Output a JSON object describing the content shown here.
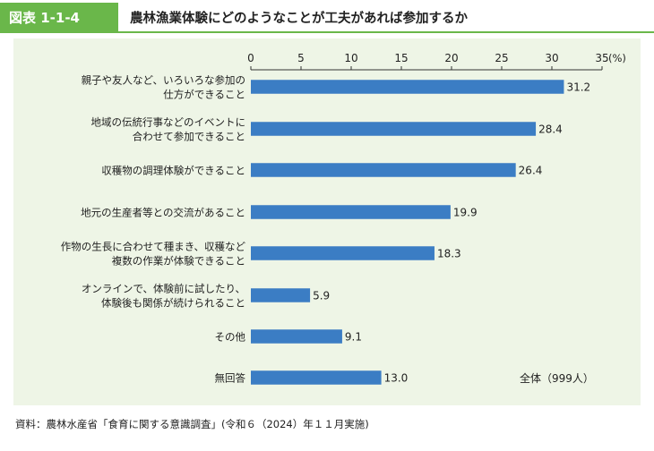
{
  "header": {
    "figure_label": "図表 1-1-4",
    "title": "農林漁業体験にどのようなことが工夫があれば参加するか"
  },
  "source": "資料：農林水産省「食育に関する意識調査」(令和６（2024）年１１月実施)",
  "colors": {
    "bar": "#3b7dc4",
    "accent": "#6ab74a",
    "panel": "#eef5e6"
  },
  "chart_data": {
    "type": "bar",
    "orientation": "horizontal",
    "categories": [
      [
        "親子や友人など、いろいろな参加の",
        "仕方ができること"
      ],
      [
        "地域の伝統行事などのイベントに",
        "合わせて参加できること"
      ],
      [
        "収穫物の調理体験ができること"
      ],
      [
        "地元の生産者等との交流があること"
      ],
      [
        "作物の生長に合わせて種まき、収穫など",
        "複数の作業が体験できること"
      ],
      [
        "オンラインで、体験前に試したり、",
        "体験後も関係が続けられること"
      ],
      [
        "その他"
      ],
      [
        "無回答"
      ]
    ],
    "values": [
      31.2,
      28.4,
      26.4,
      19.9,
      18.3,
      5.9,
      9.1,
      13.0
    ],
    "value_labels": [
      "31.2",
      "28.4",
      "26.4",
      "19.9",
      "18.3",
      "5.9",
      "9.1",
      "13.0"
    ],
    "xlim": [
      0,
      35
    ],
    "ticks": [
      "0",
      "5",
      "10",
      "15",
      "20",
      "25",
      "30",
      "35"
    ],
    "unit": "(%)",
    "annotation": "全体（999人）",
    "grid": false
  }
}
